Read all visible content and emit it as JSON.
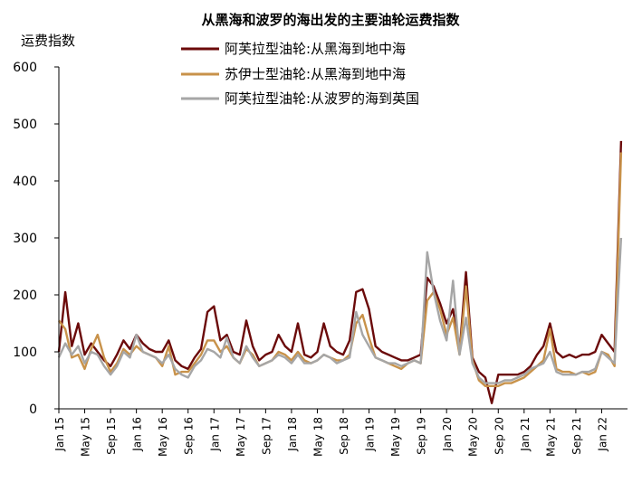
{
  "chart_data": {
    "type": "line",
    "title": "从黑海和波罗的海出发的主要油轮运费指数",
    "ylabel": "运费指数",
    "xlabel": "",
    "ylim": [
      0,
      600
    ],
    "yticks": [
      0,
      100,
      200,
      300,
      400,
      500,
      600
    ],
    "xlim": [
      "2015-01",
      "2022-05"
    ],
    "x_tick_labels": [
      "Jan 15",
      "May 15",
      "Sep 15",
      "Jan 16",
      "May 16",
      "Sep 16",
      "Jan 17",
      "May 17",
      "Sep 17",
      "Jan 18",
      "May 18",
      "Sep 18",
      "Jan 19",
      "May 19",
      "Sep 19",
      "Jan 20",
      "May 20",
      "Sep 20",
      "Jan 21",
      "May 21",
      "Sep 21",
      "Jan 22"
    ],
    "legend_position": "top-center",
    "grid": false,
    "x": [
      "2015-01",
      "2015-02",
      "2015-03",
      "2015-04",
      "2015-05",
      "2015-06",
      "2015-07",
      "2015-08",
      "2015-09",
      "2015-10",
      "2015-11",
      "2015-12",
      "2016-01",
      "2016-02",
      "2016-03",
      "2016-04",
      "2016-05",
      "2016-06",
      "2016-07",
      "2016-08",
      "2016-09",
      "2016-10",
      "2016-11",
      "2016-12",
      "2017-01",
      "2017-02",
      "2017-03",
      "2017-04",
      "2017-05",
      "2017-06",
      "2017-07",
      "2017-08",
      "2017-09",
      "2017-10",
      "2017-11",
      "2017-12",
      "2018-01",
      "2018-02",
      "2018-03",
      "2018-04",
      "2018-05",
      "2018-06",
      "2018-07",
      "2018-08",
      "2018-09",
      "2018-10",
      "2018-11",
      "2018-12",
      "2019-01",
      "2019-02",
      "2019-03",
      "2019-04",
      "2019-05",
      "2019-06",
      "2019-07",
      "2019-08",
      "2019-09",
      "2019-10",
      "2019-11",
      "2019-12",
      "2020-01",
      "2020-02",
      "2020-03",
      "2020-04",
      "2020-05",
      "2020-06",
      "2020-07",
      "2020-08",
      "2020-09",
      "2020-10",
      "2020-11",
      "2020-12",
      "2021-01",
      "2021-02",
      "2021-03",
      "2021-04",
      "2021-05",
      "2021-06",
      "2021-07",
      "2021-08",
      "2021-09",
      "2021-10",
      "2021-11",
      "2021-12",
      "2022-01",
      "2022-02",
      "2022-03",
      "2022-04"
    ],
    "series": [
      {
        "name": "阿芙拉型油轮:从黑海到地中海",
        "color": "#6b0a0a",
        "values": [
          100,
          205,
          110,
          150,
          95,
          115,
          100,
          85,
          75,
          95,
          120,
          105,
          130,
          115,
          105,
          100,
          100,
          120,
          85,
          75,
          70,
          90,
          105,
          170,
          180,
          120,
          130,
          100,
          95,
          155,
          110,
          85,
          95,
          100,
          130,
          110,
          100,
          150,
          95,
          90,
          100,
          150,
          110,
          100,
          95,
          120,
          205,
          210,
          175,
          110,
          100,
          95,
          90,
          85,
          85,
          90,
          95,
          230,
          215,
          185,
          150,
          175,
          100,
          240,
          90,
          65,
          55,
          10,
          60,
          60,
          60,
          60,
          65,
          75,
          95,
          110,
          150,
          100,
          90,
          95,
          90,
          95,
          95,
          100,
          130,
          115,
          100,
          470
        ]
      },
      {
        "name": "苏伊士型油轮:从黑海到地中海",
        "color": "#c8924a",
        "values": [
          155,
          140,
          90,
          95,
          70,
          105,
          130,
          90,
          65,
          80,
          105,
          95,
          110,
          100,
          95,
          90,
          75,
          110,
          60,
          65,
          65,
          80,
          95,
          120,
          120,
          100,
          110,
          90,
          80,
          105,
          95,
          75,
          80,
          85,
          100,
          95,
          85,
          100,
          85,
          80,
          85,
          95,
          90,
          85,
          85,
          95,
          150,
          165,
          125,
          90,
          85,
          80,
          75,
          70,
          80,
          85,
          80,
          190,
          205,
          175,
          130,
          160,
          95,
          215,
          85,
          50,
          40,
          40,
          40,
          45,
          45,
          50,
          55,
          65,
          75,
          85,
          140,
          70,
          65,
          65,
          60,
          65,
          60,
          65,
          100,
          95,
          75,
          450
        ]
      },
      {
        "name": "阿芙拉型油轮:从波罗的海到英国",
        "color": "#a6a6a6",
        "values": [
          90,
          115,
          95,
          110,
          80,
          100,
          95,
          75,
          60,
          75,
          100,
          90,
          130,
          100,
          95,
          90,
          80,
          95,
          70,
          60,
          55,
          75,
          85,
          105,
          100,
          90,
          125,
          90,
          80,
          110,
          90,
          75,
          80,
          85,
          95,
          90,
          80,
          95,
          80,
          80,
          85,
          95,
          90,
          80,
          85,
          90,
          170,
          130,
          110,
          90,
          85,
          80,
          80,
          75,
          80,
          85,
          80,
          275,
          205,
          155,
          120,
          225,
          95,
          160,
          80,
          55,
          45,
          45,
          45,
          50,
          50,
          55,
          60,
          70,
          75,
          80,
          100,
          65,
          60,
          60,
          60,
          65,
          65,
          70,
          100,
          90,
          80,
          300
        ]
      }
    ]
  }
}
